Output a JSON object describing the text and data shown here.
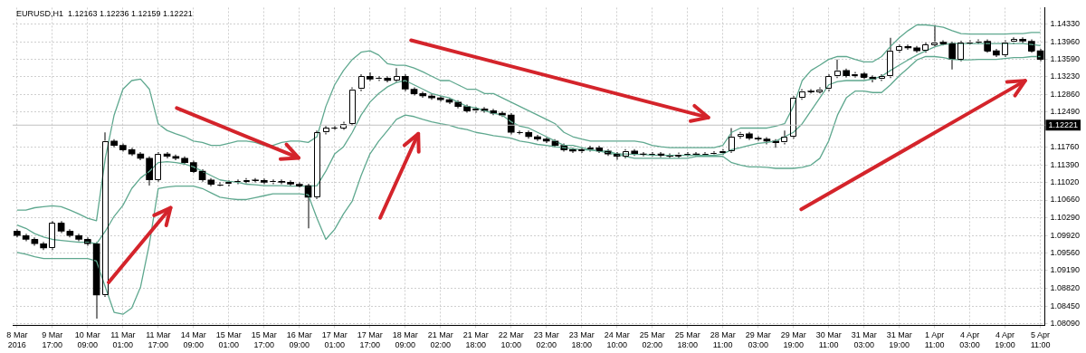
{
  "chart_data": {
    "type": "candlestick",
    "title": "EURUSD,H1  1.12163 1.12236 1.12159 1.12221",
    "colors": [
      "#000000",
      "#000000",
      "#000000",
      "#000000",
      "#ffffff",
      "#000000",
      "#000000",
      "#000000",
      "#000000",
      "#000000",
      "#ffffff",
      "#000000",
      "#000000",
      "#000000",
      "#000000",
      "#000000",
      "#ffffff",
      "#000000",
      "#000000",
      "#000000",
      "#000000",
      "#000000",
      "#000000",
      "#ffffff",
      "#ffffff",
      "#ffffff",
      "#ffffff",
      "#000000",
      "#000000",
      "#ffffff",
      "#000000",
      "#000000",
      "#000000",
      "#000000",
      "#ffffff",
      "#ffffff",
      "#ffffff",
      "#ffffff",
      "#ffffff",
      "#ffffff",
      "#000000",
      "#ffffff",
      "#000000",
      "#ffffff",
      "#000000",
      "#000000",
      "#000000",
      "#000000",
      "#000000",
      "#000000",
      "#000000",
      "#000000",
      "#ffffff",
      "#000000",
      "#000000",
      "#000000",
      "#000000",
      "#ffffff",
      "#000000",
      "#000000",
      "#000000",
      "#000000",
      "#000000",
      "#000000",
      "#ffffff",
      "#ffffff",
      "#000000",
      "#000000",
      "#000000",
      "#ffffff",
      "#000000",
      "#000000",
      "#ffffff",
      "#000000",
      "#000000",
      "#ffffff",
      "#ffffff",
      "#000000",
      "#ffffff",
      "#ffffff",
      "#ffffff",
      "#ffffff",
      "#ffffff",
      "#000000",
      "#000000",
      "#000000",
      "#000000",
      "#ffffff",
      "#ffffff",
      "#ffffff",
      "#000000",
      "#ffffff",
      "#ffffff",
      "#ffffff",
      "#000000",
      "#ffffff",
      "#000000",
      "#000000",
      "#ffffff",
      "#ffffff",
      "#ffffff",
      "#000000",
      "#000000",
      "#ffffff",
      "#ffffff",
      "#000000",
      "#000000",
      "#ffffff",
      "#ffffff",
      "#ffffff",
      "#000000",
      "#000000",
      "#ffffff",
      "#ffffff",
      "#000000",
      "#000000",
      "#000000"
    ],
    "categories": [
      "8 Mar 2016",
      null,
      null,
      null,
      "9 Mar 17:00",
      null,
      null,
      null,
      "10 Mar 09:00",
      null,
      null,
      null,
      "11 Mar 01:00",
      null,
      null,
      null,
      "11 Mar 17:00",
      null,
      null,
      null,
      "14 Mar 09:00",
      null,
      null,
      null,
      "15 Mar 01:00",
      null,
      null,
      null,
      "15 Mar 17:00",
      null,
      null,
      null,
      "16 Mar 09:00",
      null,
      null,
      null,
      "17 Mar 01:00",
      null,
      null,
      null,
      "17 Mar 17:00",
      null,
      null,
      null,
      "18 Mar 09:00",
      null,
      null,
      null,
      "21 Mar 02:00",
      null,
      null,
      null,
      "21 Mar 18:00",
      null,
      null,
      null,
      "22 Mar 10:00",
      null,
      null,
      null,
      "23 Mar 02:00",
      null,
      null,
      null,
      "23 Mar 18:00",
      null,
      null,
      null,
      "24 Mar 10:00",
      null,
      null,
      null,
      "25 Mar 02:00",
      null,
      null,
      null,
      "25 Mar 18:00",
      null,
      null,
      null,
      "28 Mar 11:00",
      null,
      null,
      null,
      "29 Mar 03:00",
      null,
      null,
      null,
      "29 Mar 19:00",
      null,
      null,
      null,
      "30 Mar 11:00",
      null,
      null,
      null,
      "31 Mar 03:00",
      null,
      null,
      null,
      "31 Mar 19:00",
      null,
      null,
      null,
      "1 Apr 11:00",
      null,
      null,
      null,
      "4 Apr 03:00",
      null,
      null,
      null,
      "4 Apr 19:00",
      null,
      null,
      null,
      "5 Apr 11:00"
    ],
    "ohlc": [
      [
        1.1001,
        1.1005,
        1.0988,
        1.0992
      ],
      [
        1.0992,
        1.0996,
        1.098,
        1.0984
      ],
      [
        1.0984,
        1.0988,
        1.0971,
        1.0975
      ],
      [
        1.0975,
        1.0979,
        1.0962,
        1.0966
      ],
      [
        1.0966,
        1.1022,
        1.0962,
        1.1018
      ],
      [
        1.1018,
        1.1022,
        1.0997,
        1.1001
      ],
      [
        1.1001,
        1.1005,
        1.0988,
        1.0992
      ],
      [
        1.0992,
        1.0996,
        1.098,
        1.0984
      ],
      [
        1.0984,
        1.0988,
        1.0971,
        1.0975
      ],
      [
        1.0975,
        1.0979,
        1.0819,
        1.0868
      ],
      [
        1.0868,
        1.1207,
        1.0864,
        1.1189
      ],
      [
        1.1189,
        1.1193,
        1.1176,
        1.118
      ],
      [
        1.118,
        1.1184,
        1.1167,
        1.1171
      ],
      [
        1.1171,
        1.1175,
        1.1158,
        1.1162
      ],
      [
        1.1162,
        1.1166,
        1.1149,
        1.1153
      ],
      [
        1.1153,
        1.1157,
        1.1096,
        1.1108
      ],
      [
        1.1108,
        1.1166,
        1.1104,
        1.1162
      ],
      [
        1.1162,
        1.1166,
        1.1153,
        1.1157
      ],
      [
        1.1157,
        1.1161,
        1.1149,
        1.1153
      ],
      [
        1.1153,
        1.1157,
        1.114,
        1.1144
      ],
      [
        1.1144,
        1.1148,
        1.1122,
        1.1126
      ],
      [
        1.1126,
        1.113,
        1.1104,
        1.1108
      ],
      [
        1.1108,
        1.1112,
        1.1095,
        1.1099
      ],
      [
        1.1099,
        1.1103,
        1.1095,
        1.1099
      ],
      [
        1.1099,
        1.1107,
        1.1095,
        1.1103
      ],
      [
        1.1103,
        1.1109,
        1.1099,
        1.1105
      ],
      [
        1.1105,
        1.1112,
        1.1101,
        1.1108
      ],
      [
        1.1108,
        1.1112,
        1.1103,
        1.1107
      ],
      [
        1.1107,
        1.1111,
        1.1099,
        1.1103
      ],
      [
        1.1103,
        1.1109,
        1.1099,
        1.1105
      ],
      [
        1.1105,
        1.1109,
        1.1099,
        1.1103
      ],
      [
        1.1103,
        1.1107,
        1.1095,
        1.1099
      ],
      [
        1.1099,
        1.1103,
        1.1092,
        1.1096
      ],
      [
        1.1096,
        1.11,
        1.1007,
        1.1072
      ],
      [
        1.1072,
        1.1211,
        1.1068,
        1.1207
      ],
      [
        1.1207,
        1.122,
        1.1203,
        1.1216
      ],
      [
        1.1216,
        1.122,
        1.1212,
        1.1216
      ],
      [
        1.1216,
        1.1229,
        1.1212,
        1.1225
      ],
      [
        1.1225,
        1.1301,
        1.1221,
        1.1297
      ],
      [
        1.1297,
        1.1328,
        1.1293,
        1.1324
      ],
      [
        1.1324,
        1.1332,
        1.1314,
        1.1318
      ],
      [
        1.1318,
        1.1324,
        1.1314,
        1.132
      ],
      [
        1.132,
        1.1324,
        1.1311,
        1.1315
      ],
      [
        1.1315,
        1.1341,
        1.1311,
        1.1324
      ],
      [
        1.1324,
        1.1328,
        1.1293,
        1.1297
      ],
      [
        1.1297,
        1.1301,
        1.1284,
        1.1288
      ],
      [
        1.1288,
        1.1292,
        1.1279,
        1.1283
      ],
      [
        1.1283,
        1.1287,
        1.1275,
        1.1279
      ],
      [
        1.1279,
        1.1283,
        1.1271,
        1.1275
      ],
      [
        1.1275,
        1.1279,
        1.1266,
        1.127
      ],
      [
        1.127,
        1.1274,
        1.1257,
        1.1261
      ],
      [
        1.1261,
        1.1265,
        1.1248,
        1.1252
      ],
      [
        1.1252,
        1.126,
        1.1248,
        1.1256
      ],
      [
        1.1256,
        1.126,
        1.1248,
        1.1252
      ],
      [
        1.1252,
        1.1256,
        1.1243,
        1.1247
      ],
      [
        1.1247,
        1.1251,
        1.1239,
        1.1243
      ],
      [
        1.1243,
        1.1247,
        1.1203,
        1.1207
      ],
      [
        1.1207,
        1.1211,
        1.1203,
        1.1207
      ],
      [
        1.1207,
        1.1211,
        1.1194,
        1.1198
      ],
      [
        1.1198,
        1.1202,
        1.1189,
        1.1193
      ],
      [
        1.1193,
        1.1197,
        1.1185,
        1.1189
      ],
      [
        1.1189,
        1.1193,
        1.1176,
        1.118
      ],
      [
        1.118,
        1.1184,
        1.1167,
        1.1171
      ],
      [
        1.1171,
        1.1175,
        1.1164,
        1.1168
      ],
      [
        1.1168,
        1.1175,
        1.1164,
        1.1171
      ],
      [
        1.1171,
        1.1179,
        1.1167,
        1.1175
      ],
      [
        1.1175,
        1.1179,
        1.1164,
        1.1168
      ],
      [
        1.1168,
        1.1172,
        1.1158,
        1.1162
      ],
      [
        1.1162,
        1.1166,
        1.115,
        1.1157
      ],
      [
        1.1157,
        1.1172,
        1.1153,
        1.1168
      ],
      [
        1.1168,
        1.1172,
        1.1158,
        1.1162
      ],
      [
        1.1162,
        1.1166,
        1.1157,
        1.1161
      ],
      [
        1.1161,
        1.1166,
        1.1157,
        1.1162
      ],
      [
        1.1162,
        1.1166,
        1.1155,
        1.1159
      ],
      [
        1.1159,
        1.1163,
        1.1153,
        1.1157
      ],
      [
        1.1157,
        1.1165,
        1.1153,
        1.1161
      ],
      [
        1.1161,
        1.1166,
        1.1157,
        1.1162
      ],
      [
        1.1162,
        1.1166,
        1.1157,
        1.1161
      ],
      [
        1.1161,
        1.1166,
        1.1157,
        1.1162
      ],
      [
        1.1162,
        1.1168,
        1.1158,
        1.1164
      ],
      [
        1.1164,
        1.1172,
        1.116,
        1.1168
      ],
      [
        1.1168,
        1.1216,
        1.1164,
        1.1198
      ],
      [
        1.1198,
        1.1208,
        1.1194,
        1.1204
      ],
      [
        1.1204,
        1.1208,
        1.1191,
        1.1195
      ],
      [
        1.1195,
        1.1199,
        1.1189,
        1.1193
      ],
      [
        1.1193,
        1.1197,
        1.1182,
        1.1189
      ],
      [
        1.1189,
        1.1193,
        1.1175,
        1.1186
      ],
      [
        1.1186,
        1.1211,
        1.1182,
        1.1198
      ],
      [
        1.1198,
        1.1283,
        1.1194,
        1.1279
      ],
      [
        1.1279,
        1.1297,
        1.1275,
        1.1293
      ],
      [
        1.1293,
        1.1297,
        1.1288,
        1.1292
      ],
      [
        1.1292,
        1.1301,
        1.1288,
        1.1297
      ],
      [
        1.1297,
        1.1328,
        1.1293,
        1.1324
      ],
      [
        1.1324,
        1.1359,
        1.132,
        1.1336
      ],
      [
        1.1336,
        1.134,
        1.1321,
        1.1325
      ],
      [
        1.1325,
        1.1333,
        1.1321,
        1.1329
      ],
      [
        1.1329,
        1.1333,
        1.1318,
        1.1322
      ],
      [
        1.1322,
        1.1326,
        1.1311,
        1.1318
      ],
      [
        1.1318,
        1.1328,
        1.1314,
        1.1324
      ],
      [
        1.1324,
        1.1404,
        1.132,
        1.1377
      ],
      [
        1.1377,
        1.139,
        1.1373,
        1.1386
      ],
      [
        1.1386,
        1.139,
        1.1379,
        1.1383
      ],
      [
        1.1383,
        1.1387,
        1.1373,
        1.1377
      ],
      [
        1.1377,
        1.1394,
        1.1373,
        1.139
      ],
      [
        1.139,
        1.1431,
        1.1386,
        1.1395
      ],
      [
        1.1395,
        1.1399,
        1.1388,
        1.1392
      ],
      [
        1.1392,
        1.1396,
        1.1338,
        1.1359
      ],
      [
        1.1359,
        1.1398,
        1.1355,
        1.1394
      ],
      [
        1.1394,
        1.1399,
        1.139,
        1.1395
      ],
      [
        1.1395,
        1.1401,
        1.1391,
        1.1397
      ],
      [
        1.1397,
        1.1401,
        1.1373,
        1.1377
      ],
      [
        1.1377,
        1.1381,
        1.1364,
        1.1368
      ],
      [
        1.1368,
        1.1399,
        1.1364,
        1.1395
      ],
      [
        1.1395,
        1.1405,
        1.1391,
        1.1401
      ],
      [
        1.1401,
        1.1405,
        1.1393,
        1.1397
      ],
      [
        1.1397,
        1.1401,
        1.1373,
        1.1377
      ],
      [
        1.1377,
        1.1381,
        1.1355,
        1.1359
      ]
    ],
    "series": [
      {
        "type": "line",
        "color": "#5fa88f",
        "values": [
          1.1045,
          1.1045,
          1.105,
          1.1052,
          1.1054,
          1.1052,
          1.1045,
          1.1037,
          1.1028,
          1.1023,
          1.1153,
          1.1243,
          1.1297,
          1.1315,
          1.1318,
          1.1297,
          1.1225,
          1.1211,
          1.1204,
          1.1198,
          1.1189,
          1.1186,
          1.118,
          1.118,
          1.1184,
          1.1189,
          1.1189,
          1.1186,
          1.118,
          1.118,
          1.1186,
          1.1189,
          1.1189,
          1.1186,
          1.1198,
          1.1261,
          1.1306,
          1.1336,
          1.1359,
          1.1374,
          1.1377,
          1.1368,
          1.135,
          1.1347,
          1.1347,
          1.1341,
          1.1333,
          1.1324,
          1.1315,
          1.1315,
          1.1306,
          1.1297,
          1.1297,
          1.1288,
          1.1288,
          1.1279,
          1.127,
          1.1261,
          1.1252,
          1.1243,
          1.1234,
          1.1225,
          1.1207,
          1.1198,
          1.1193,
          1.1189,
          1.1189,
          1.1189,
          1.1189,
          1.1189,
          1.1189,
          1.1186,
          1.118,
          1.1177,
          1.1175,
          1.1175,
          1.1175,
          1.1175,
          1.1175,
          1.1175,
          1.118,
          1.1207,
          1.1216,
          1.1216,
          1.1216,
          1.1216,
          1.122,
          1.1225,
          1.1261,
          1.1315,
          1.1336,
          1.1347,
          1.1359,
          1.1365,
          1.1365,
          1.1359,
          1.1354,
          1.1354,
          1.1365,
          1.1386,
          1.1404,
          1.1419,
          1.1431,
          1.1431,
          1.1429,
          1.1426,
          1.1419,
          1.1413,
          1.1412,
          1.1412,
          1.1412,
          1.1412,
          1.1412,
          1.1413,
          1.1413,
          1.1415,
          1.1415
        ]
      },
      {
        "type": "line",
        "color": "#5fa88f",
        "values": [
          1.1014,
          1.1007,
          1.0996,
          1.0989,
          1.0984,
          1.0982,
          1.098,
          1.0978,
          1.0978,
          1.0975,
          1.1001,
          1.1032,
          1.1055,
          1.109,
          1.1112,
          1.1126,
          1.1144,
          1.1146,
          1.1144,
          1.1141,
          1.1135,
          1.1126,
          1.1117,
          1.1108,
          1.1105,
          1.1103,
          1.1099,
          1.1098,
          1.1096,
          1.1096,
          1.1096,
          1.1095,
          1.1095,
          1.1095,
          1.1096,
          1.1126,
          1.1162,
          1.1177,
          1.1207,
          1.1243,
          1.127,
          1.1288,
          1.1302,
          1.1311,
          1.1315,
          1.1306,
          1.1297,
          1.1288,
          1.1283,
          1.1279,
          1.127,
          1.1261,
          1.1258,
          1.1252,
          1.1247,
          1.1243,
          1.1229,
          1.122,
          1.1216,
          1.1207,
          1.1198,
          1.1189,
          1.118,
          1.118,
          1.1175,
          1.1171,
          1.1168,
          1.1168,
          1.1162,
          1.1162,
          1.1161,
          1.1161,
          1.1159,
          1.1159,
          1.1159,
          1.1159,
          1.1159,
          1.1159,
          1.1159,
          1.1159,
          1.1162,
          1.1171,
          1.1175,
          1.118,
          1.1184,
          1.1186,
          1.1189,
          1.1198,
          1.1207,
          1.1225,
          1.1252,
          1.1279,
          1.1306,
          1.1313,
          1.1315,
          1.1315,
          1.1315,
          1.1318,
          1.1324,
          1.1336,
          1.1347,
          1.1358,
          1.1368,
          1.1377,
          1.1385,
          1.139,
          1.1392,
          1.1392,
          1.1392,
          1.1392,
          1.1392,
          1.1392,
          1.1392,
          1.1392,
          1.1392,
          1.139,
          1.1388
        ]
      },
      {
        "type": "line",
        "color": "#5fa88f",
        "values": [
          1.0957,
          1.0953,
          1.0948,
          1.0944,
          1.0944,
          1.0944,
          1.0944,
          1.0944,
          1.0944,
          1.0939,
          1.0885,
          1.0832,
          1.0828,
          1.0841,
          1.0885,
          1.0975,
          1.109,
          1.1093,
          1.1095,
          1.1095,
          1.1095,
          1.109,
          1.1081,
          1.1072,
          1.1069,
          1.1067,
          1.1067,
          1.1071,
          1.1075,
          1.1079,
          1.1079,
          1.1079,
          1.1079,
          1.1077,
          1.1028,
          1.0984,
          1.1005,
          1.1037,
          1.1064,
          1.1117,
          1.1162,
          1.1189,
          1.1211,
          1.1234,
          1.1243,
          1.124,
          1.1234,
          1.1229,
          1.1225,
          1.1222,
          1.1216,
          1.1213,
          1.1207,
          1.1204,
          1.12,
          1.1198,
          1.1195,
          1.1189,
          1.1186,
          1.1182,
          1.118,
          1.1177,
          1.1175,
          1.1173,
          1.1171,
          1.117,
          1.1168,
          1.1164,
          1.1161,
          1.1157,
          1.1153,
          1.1153,
          1.1153,
          1.1153,
          1.1153,
          1.1153,
          1.1153,
          1.1157,
          1.1157,
          1.1157,
          1.1157,
          1.1144,
          1.1139,
          1.1135,
          1.1135,
          1.1134,
          1.1132,
          1.1132,
          1.1132,
          1.1134,
          1.1139,
          1.1153,
          1.1189,
          1.1243,
          1.1279,
          1.1293,
          1.1293,
          1.129,
          1.129,
          1.1306,
          1.1325,
          1.1341,
          1.1358,
          1.1365,
          1.1365,
          1.1363,
          1.1359,
          1.1358,
          1.1358,
          1.1359,
          1.1359,
          1.1359,
          1.1361,
          1.1363,
          1.1363,
          1.1365,
          1.1365
        ]
      }
    ],
    "ylim": [
      1.0805,
      1.1467
    ],
    "yticks": [
      {
        "value": 1.1433,
        "label": "1.14330"
      },
      {
        "value": 1.1396,
        "label": "1.13960"
      },
      {
        "value": 1.1359,
        "label": "1.13590"
      },
      {
        "value": 1.1323,
        "label": "1.13230"
      },
      {
        "value": 1.1286,
        "label": "1.12860"
      },
      {
        "value": 1.1249,
        "label": "1.12490"
      },
      {
        "value": 1.1176,
        "label": "1.11760"
      },
      {
        "value": 1.1139,
        "label": "1.11390"
      },
      {
        "value": 1.1102,
        "label": "1.11020"
      },
      {
        "value": 1.1066,
        "label": "1.10660"
      },
      {
        "value": 1.1029,
        "label": "1.10290"
      },
      {
        "value": 1.0992,
        "label": "1.09920"
      },
      {
        "value": 1.0956,
        "label": "1.09560"
      },
      {
        "value": 1.0919,
        "label": "1.09190"
      },
      {
        "value": 1.0882,
        "label": "1.08820"
      },
      {
        "value": 1.0845,
        "label": "1.08450"
      },
      {
        "value": 1.0809,
        "label": "1.08090"
      }
    ],
    "ref_lines": [
      {
        "axis": "y",
        "value": 1.12221,
        "label": "1.12221",
        "color": "#c0c0c0"
      }
    ],
    "grid": true
  }
}
